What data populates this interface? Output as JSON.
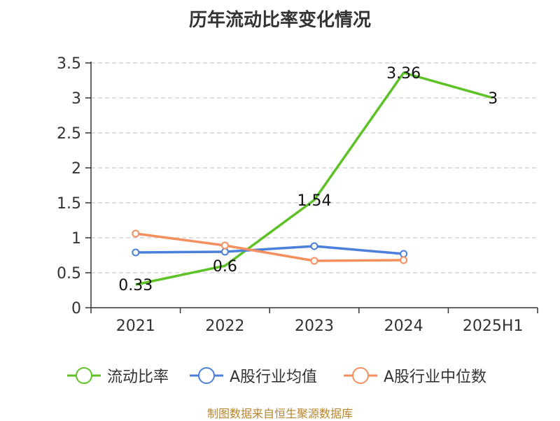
{
  "title": "历年流动比率变化情况",
  "footer": "制图数据来自恒生聚源数据库",
  "chart_data": {
    "type": "line",
    "categories": [
      "2021",
      "2022",
      "2023",
      "2024",
      "2025H1"
    ],
    "ylim": [
      0,
      3.5
    ],
    "yticks": [
      0,
      0.5,
      1,
      1.5,
      2,
      2.5,
      3,
      3.5
    ],
    "ytick_labels": [
      "0",
      "0.5",
      "1",
      "1.5",
      "2",
      "2.5",
      "3",
      "3.5"
    ],
    "grid": true,
    "legend_position": "bottom",
    "series": [
      {
        "name": "流动比率",
        "color": "#5ec227",
        "values": [
          0.33,
          0.6,
          1.54,
          3.36,
          3.0
        ],
        "labels": [
          "0.33",
          "0.6",
          "1.54",
          "3.36",
          "3"
        ],
        "show_labels": true
      },
      {
        "name": "A股行业均值",
        "color": "#4a7fdc",
        "values": [
          0.79,
          0.8,
          0.88,
          0.77,
          null
        ],
        "show_labels": false
      },
      {
        "name": "A股行业中位数",
        "color": "#f58f5e",
        "values": [
          1.06,
          0.89,
          0.67,
          0.68,
          null
        ],
        "show_labels": false
      }
    ]
  }
}
